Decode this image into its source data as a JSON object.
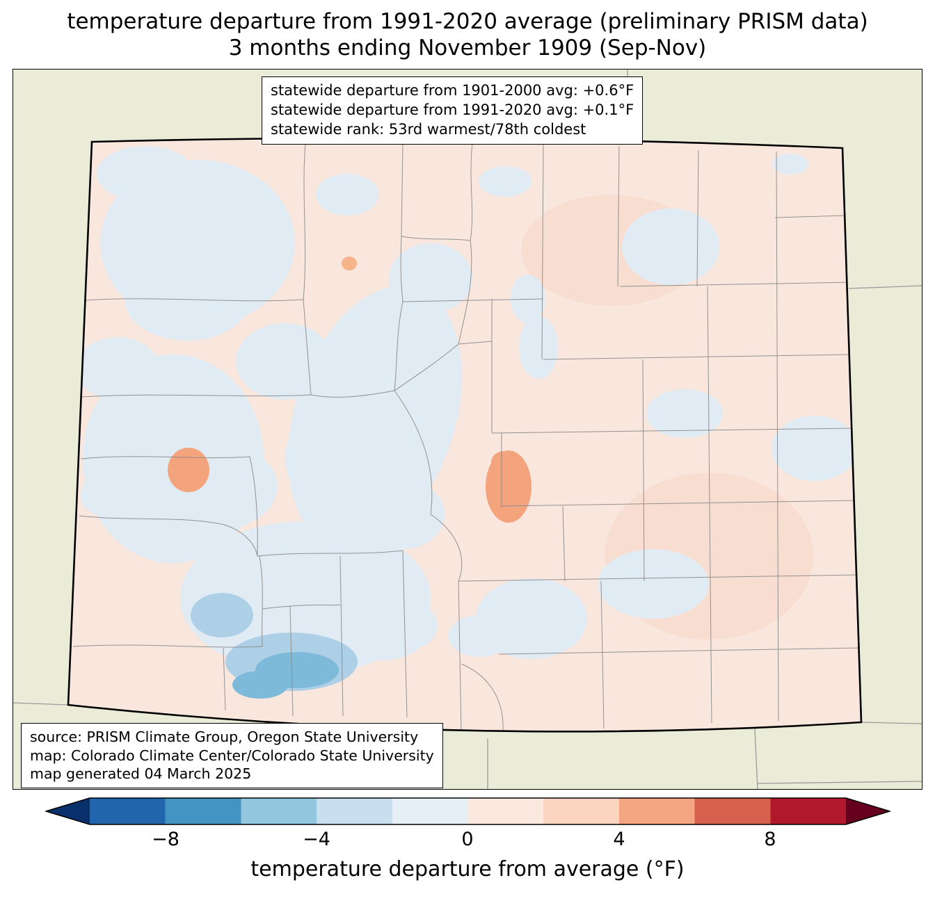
{
  "title": {
    "line1": "temperature departure from 1991-2020 average (preliminary PRISM data)",
    "line2": "3 months ending November 1909 (Sep-Nov)"
  },
  "stats_box": {
    "lines": [
      "statewide departure from 1901-2000 avg: +0.6°F",
      "statewide departure from 1991-2020 avg: +0.1°F",
      "statewide rank: 53rd warmest/78th coldest"
    ]
  },
  "source_box": {
    "lines": [
      "source: PRISM Climate Group, Oregon State University",
      "map: Colorado Climate Center/Colorado State University",
      "map generated 04 March 2025"
    ]
  },
  "colorbar": {
    "label": "temperature departure from average (°F)",
    "tick_labels": [
      "−8",
      "−4",
      "0",
      "4",
      "8"
    ],
    "tick_values": [
      -8,
      -4,
      0,
      4,
      8
    ],
    "value_range": [
      -10,
      10
    ],
    "segment_colors": [
      "#2166ac",
      "#4393c3",
      "#92c5de",
      "#c8dff0",
      "#e6eff6",
      "#fbe9df",
      "#fcd5c0",
      "#f4a582",
      "#d6604d",
      "#b2182b"
    ],
    "under_arrow_color": "#08306b",
    "over_arrow_color": "#67001f"
  },
  "map": {
    "region": "Colorado",
    "colors": {
      "background": "#ebecd7",
      "state_fill": "#f9e7de",
      "warm_tint": "#f8ded0",
      "cool_light": "#e1ebf4",
      "cool_medium": "#aed0e6",
      "cool_strong": "#7db9d9",
      "warm_medium": "#f3a47d",
      "warm_small": "#f6b48b",
      "county_line": "#8c8c8c",
      "neighbor_line": "#9a9a9a",
      "state_border": "#000000"
    }
  }
}
